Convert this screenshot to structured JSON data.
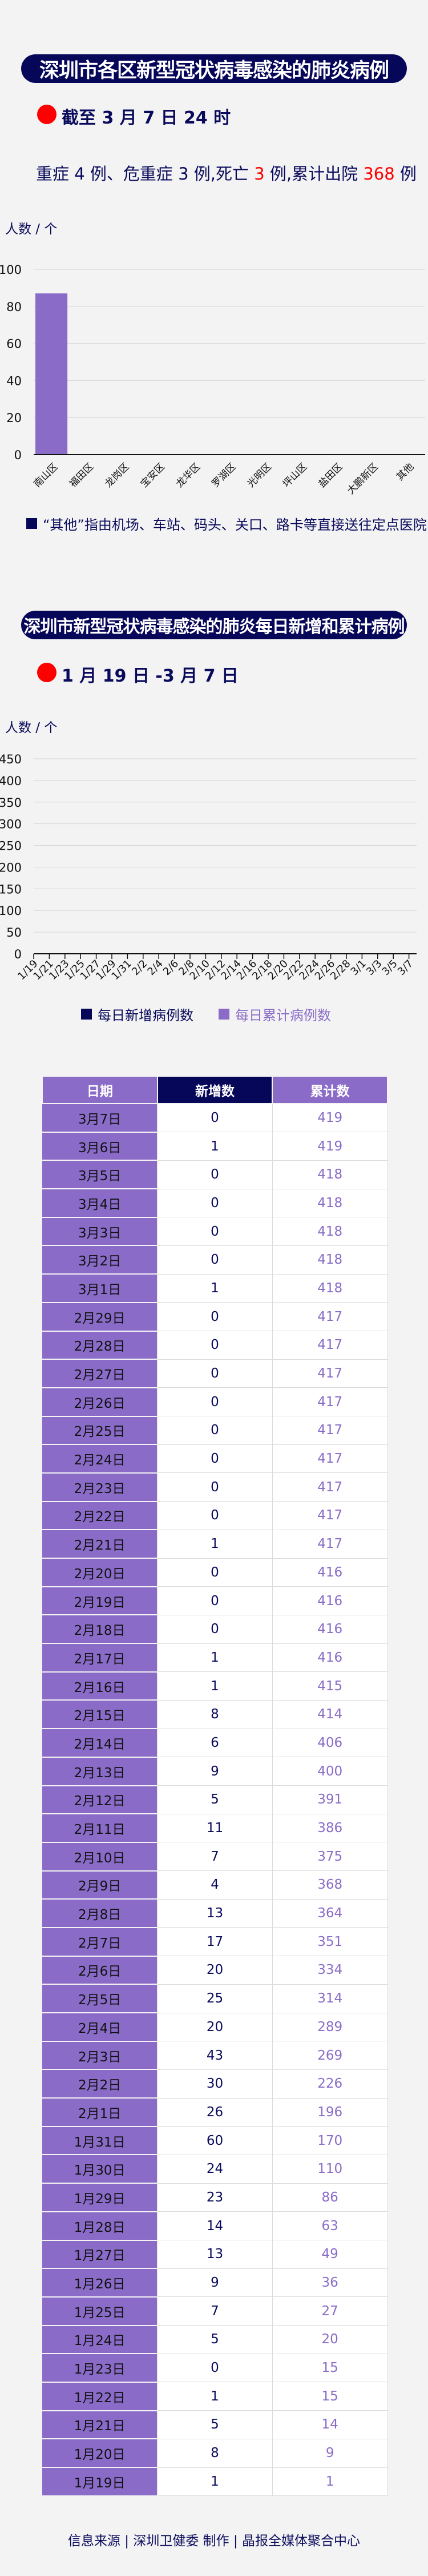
{
  "section1": {
    "title": "深圳市各区新型冠状病毒感染的肺炎病例",
    "as_of": "截至 3 月 7 日 24 时",
    "summary": {
      "p1": "重症 4 例、危重症 3 例,死亡 ",
      "deaths": "3",
      "p2": " 例,累计出院 ",
      "discharged": "368",
      "p3": " 例"
    },
    "unit_label": "人数 / 个",
    "note": "“其他”指由机场、车站、码头、关口、路卡等直接送往定点医院的"
  },
  "section2": {
    "title": "深圳市新型冠状病毒感染的肺炎每日新增和累计病例",
    "date_range": "1 月 19 日 -3 月 7 日",
    "unit_label": "人数 / 个"
  },
  "chart_data": [
    {
      "type": "bar",
      "categories": [
        "南山区",
        "福田区",
        "龙岗区",
        "宝安区",
        "龙华区",
        "罗湖区",
        "光明区",
        "坪山区",
        "盐田区",
        "大鹏新区",
        "其他"
      ],
      "values": [
        87,
        0,
        0,
        0,
        0,
        0,
        0,
        0,
        0,
        0,
        0
      ],
      "ylabel": "人数 / 个",
      "ylim": [
        0,
        100
      ],
      "yticks": [
        0,
        20,
        40,
        60,
        80,
        100
      ],
      "grid": true,
      "color": "#8a6cc8"
    },
    {
      "type": "line",
      "x_tick_labels": [
        "1/19",
        "1/21",
        "1/23",
        "1/25",
        "1/27",
        "1/29",
        "1/31",
        "2/2",
        "2/4",
        "2/6",
        "2/8",
        "2/10",
        "2/12",
        "2/14",
        "2/16",
        "2/18",
        "2/20",
        "2/22",
        "2/24",
        "2/26",
        "2/28",
        "3/1",
        "3/3",
        "3/5",
        "3/7"
      ],
      "ylabel": "人数 / 个",
      "ylim": [
        0,
        450
      ],
      "yticks": [
        0,
        50,
        100,
        150,
        200,
        250,
        300,
        350,
        400,
        450
      ],
      "grid": true,
      "legend_position": "bottom",
      "series": [
        {
          "name": "每日新增病例数",
          "color": "#07075a",
          "values": []
        },
        {
          "name": "每日累计病例数",
          "color": "#8a6cc8",
          "values": []
        }
      ]
    }
  ],
  "table": {
    "headers": [
      "日期",
      "新增数",
      "累计数"
    ],
    "rows": [
      [
        "3月7日",
        "0",
        "419"
      ],
      [
        "3月6日",
        "1",
        "419"
      ],
      [
        "3月5日",
        "0",
        "418"
      ],
      [
        "3月4日",
        "0",
        "418"
      ],
      [
        "3月3日",
        "0",
        "418"
      ],
      [
        "3月2日",
        "0",
        "418"
      ],
      [
        "3月1日",
        "1",
        "418"
      ],
      [
        "2月29日",
        "0",
        "417"
      ],
      [
        "2月28日",
        "0",
        "417"
      ],
      [
        "2月27日",
        "0",
        "417"
      ],
      [
        "2月26日",
        "0",
        "417"
      ],
      [
        "2月25日",
        "0",
        "417"
      ],
      [
        "2月24日",
        "0",
        "417"
      ],
      [
        "2月23日",
        "0",
        "417"
      ],
      [
        "2月22日",
        "0",
        "417"
      ],
      [
        "2月21日",
        "1",
        "417"
      ],
      [
        "2月20日",
        "0",
        "416"
      ],
      [
        "2月19日",
        "0",
        "416"
      ],
      [
        "2月18日",
        "0",
        "416"
      ],
      [
        "2月17日",
        "1",
        "416"
      ],
      [
        "2月16日",
        "1",
        "415"
      ],
      [
        "2月15日",
        "8",
        "414"
      ],
      [
        "2月14日",
        "6",
        "406"
      ],
      [
        "2月13日",
        "9",
        "400"
      ],
      [
        "2月12日",
        "5",
        "391"
      ],
      [
        "2月11日",
        "11",
        "386"
      ],
      [
        "2月10日",
        "7",
        "375"
      ],
      [
        "2月9日",
        "4",
        "368"
      ],
      [
        "2月8日",
        "13",
        "364"
      ],
      [
        "2月7日",
        "17",
        "351"
      ],
      [
        "2月6日",
        "20",
        "334"
      ],
      [
        "2月5日",
        "25",
        "314"
      ],
      [
        "2月4日",
        "20",
        "289"
      ],
      [
        "2月3日",
        "43",
        "269"
      ],
      [
        "2月2日",
        "30",
        "226"
      ],
      [
        "2月1日",
        "26",
        "196"
      ],
      [
        "1月31日",
        "60",
        "170"
      ],
      [
        "1月30日",
        "24",
        "110"
      ],
      [
        "1月29日",
        "23",
        "86"
      ],
      [
        "1月28日",
        "14",
        "63"
      ],
      [
        "1月27日",
        "13",
        "49"
      ],
      [
        "1月26日",
        "9",
        "36"
      ],
      [
        "1月25日",
        "7",
        "27"
      ],
      [
        "1月24日",
        "5",
        "20"
      ],
      [
        "1月23日",
        "0",
        "15"
      ],
      [
        "1月22日",
        "1",
        "15"
      ],
      [
        "1月21日",
        "5",
        "14"
      ],
      [
        "1月20日",
        "8",
        "9"
      ],
      [
        "1月19日",
        "1",
        "1"
      ]
    ]
  },
  "footer": "信息来源 | 深圳卫健委 制作 | 晶报全媒体聚合中心",
  "colors": {
    "navy": "#07075a",
    "purple": "#8a6cc8",
    "accent_red": "#ff0000",
    "background": "#f3f3f3"
  }
}
